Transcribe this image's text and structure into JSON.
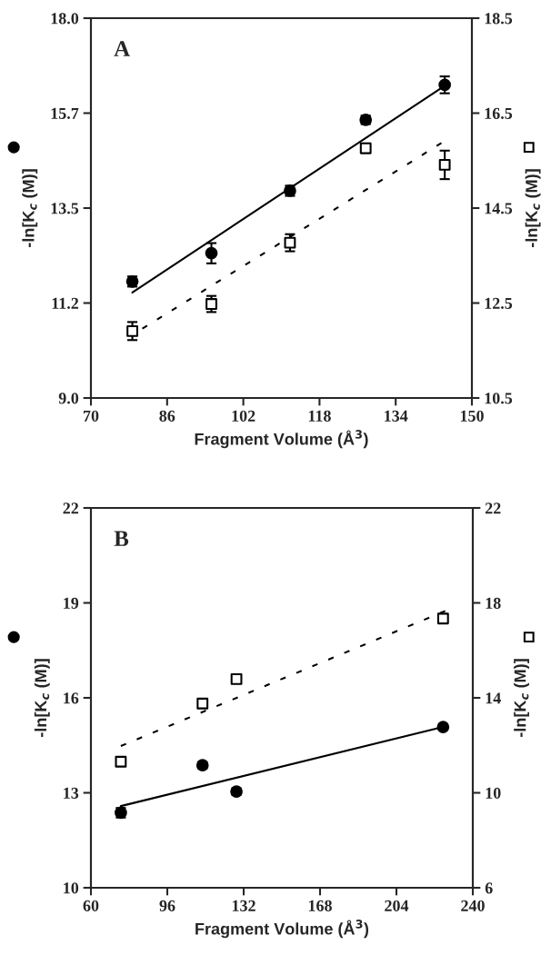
{
  "chart_data": [
    {
      "type": "scatter",
      "title": "A",
      "xlabel": "Fragment Volume (Å$^{3}$)",
      "ylabel": "-ln[K$_{c}$ (M)]",
      "y2label": "-ln[K$_{c}$ (M)]",
      "xlim": [
        70,
        150
      ],
      "xticks": [
        70,
        86,
        102,
        118,
        134,
        150
      ],
      "ylim": [
        9,
        18
      ],
      "yticks": [
        {
          "value": 9,
          "label": "9.0"
        },
        {
          "value": 11.25,
          "label": "11.2"
        },
        {
          "value": 13.5,
          "label": "13.5"
        },
        {
          "value": 15.75,
          "label": "15.7"
        },
        {
          "value": 18,
          "label": "18.0"
        }
      ],
      "y2lim": [
        10.5,
        18.5
      ],
      "y2ticks": [
        10.5,
        12.5,
        14.5,
        16.5,
        18.5
      ],
      "series": [
        {
          "marker": "circle",
          "color": "#000000",
          "x": [
            78.7,
            95.3,
            111.8,
            127.7,
            144.3
          ],
          "values": [
            11.76,
            12.43,
            13.91,
            15.59,
            16.42
          ],
          "errors": [
            0.12,
            0.24,
            0.12,
            0.1,
            0.2
          ]
        },
        {
          "marker": "square",
          "color": "#000000",
          "axis": "y2",
          "x": [
            78.7,
            95.3,
            111.8,
            127.7,
            144.3
          ],
          "values": [
            11.91,
            12.48,
            13.77,
            15.76,
            15.41
          ],
          "errors": [
            0.19,
            0.17,
            0.18,
            0.1,
            0.3
          ]
        },
        {
          "type": "line",
          "line_style": "solid",
          "color": "#000000",
          "x": [
            78.7,
            144.3
          ],
          "values": [
            11.5,
            16.4
          ]
        },
        {
          "type": "line",
          "line_style": "dashed",
          "color": "#000000",
          "axis": "y2",
          "x": [
            80.8,
            143.6
          ],
          "values": [
            11.96,
            15.87
          ]
        }
      ]
    },
    {
      "type": "scatter",
      "title": "B",
      "xlabel": "Fragment Volume (Å$^{3}$)",
      "ylabel": "-ln[K$_{c}$ (M)]",
      "y2label": "-ln[K$_{c}$ (M)]",
      "xlim": [
        60,
        240
      ],
      "xticks": [
        60,
        96,
        132,
        168,
        204,
        240
      ],
      "ylim": [
        10,
        22
      ],
      "yticks": [
        10,
        13,
        16,
        19,
        22
      ],
      "y2lim": [
        6,
        22
      ],
      "y2ticks": [
        6,
        10,
        14,
        18,
        22
      ],
      "series": [
        {
          "marker": "circle",
          "color": "#000000",
          "x": [
            74.1,
            112.6,
            128.6,
            226
          ],
          "values": [
            12.37,
            13.87,
            13.04,
            15.08
          ],
          "errors": [
            0.15,
            0.1,
            0.1,
            null
          ]
        },
        {
          "marker": "square",
          "color": "#000000",
          "axis": "y2",
          "x": [
            74.1,
            112.6,
            128.6,
            226
          ],
          "values": [
            11.31,
            13.76,
            14.79,
            17.34
          ]
        },
        {
          "type": "line",
          "line_style": "solid",
          "color": "#000000",
          "x": [
            74.1,
            226
          ],
          "values": [
            12.58,
            15.08
          ]
        },
        {
          "type": "line",
          "line_style": "dashed",
          "color": "#000000",
          "axis": "y2",
          "x": [
            74.1,
            227
          ],
          "values": [
            11.97,
            17.66
          ]
        }
      ]
    }
  ]
}
